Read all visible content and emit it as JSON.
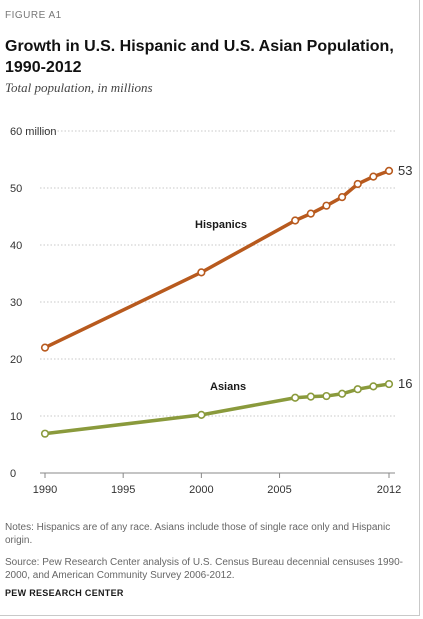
{
  "figure_label": "FIGURE A1",
  "title": "Growth in U.S. Hispanic and U.S. Asian Population, 1990-2012",
  "subtitle": "Total population, in millions",
  "notes": "Notes: Hispanics are of any race. Asians include those of single race only and Hispanic origin.",
  "source": "Source: Pew Research Center analysis of U.S. Census Bureau decennial censuses 1990-2000, and American Community Survey 2006-2012.",
  "org": "PEW RESEARCH CENTER",
  "colors": {
    "hispanics": "#b85a1e",
    "asians": "#8a9a3c",
    "grid": "#c8c8c8",
    "axis": "#888888"
  },
  "chart_data": {
    "type": "line",
    "xlim": [
      1990,
      2012
    ],
    "ylim": [
      0,
      60
    ],
    "x_ticks": [
      1990,
      1995,
      2000,
      2005,
      2012
    ],
    "x_tick_labels": [
      "1990",
      "1995",
      "2000",
      "2005",
      "2012"
    ],
    "y_ticks": [
      0,
      10,
      20,
      30,
      40,
      50,
      60
    ],
    "y_tick_labels": [
      "0",
      "10",
      "20",
      "30",
      "40",
      "50",
      "60 million"
    ],
    "grid": "horizontal dotted",
    "series": [
      {
        "name": "Hispanics",
        "color": "#b85a1e",
        "x": [
          1990,
          2000,
          2006,
          2007,
          2008,
          2009,
          2010,
          2011,
          2012
        ],
        "values": [
          22.0,
          35.2,
          44.3,
          45.5,
          46.9,
          48.4,
          50.7,
          52.0,
          53.0
        ],
        "end_label": "53"
      },
      {
        "name": "Asians",
        "color": "#8a9a3c",
        "x": [
          1990,
          2000,
          2006,
          2007,
          2008,
          2009,
          2010,
          2011,
          2012
        ],
        "values": [
          6.9,
          10.2,
          13.2,
          13.4,
          13.5,
          13.9,
          14.7,
          15.2,
          15.6
        ],
        "end_label": "16"
      }
    ]
  }
}
